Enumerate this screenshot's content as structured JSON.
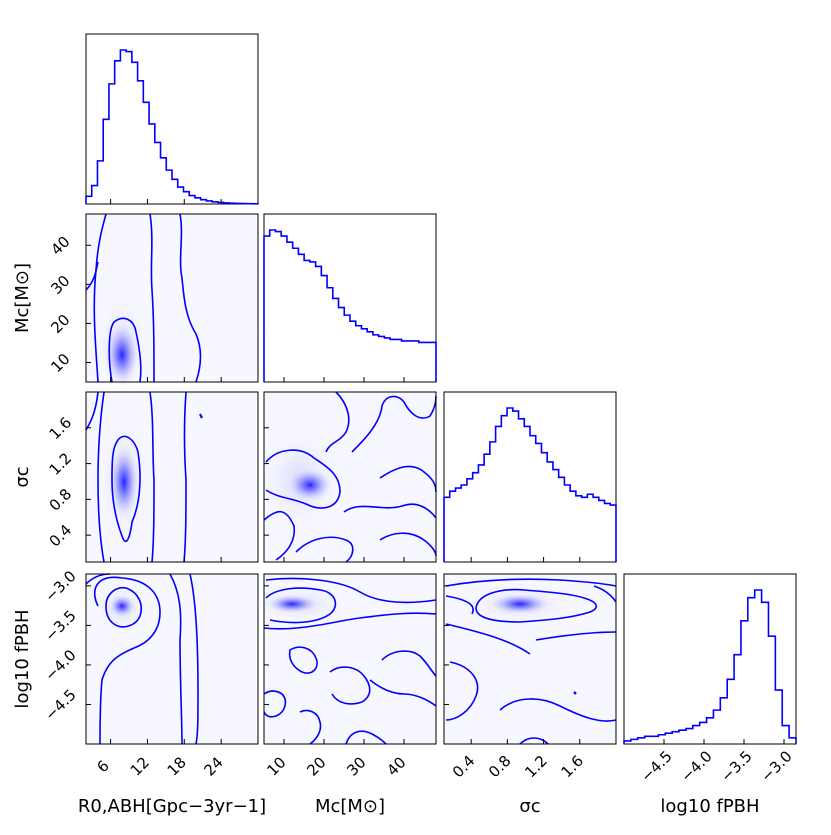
{
  "chart_data": {
    "type": "corner",
    "color": "#0000ff",
    "parameters": [
      {
        "label": "R_{0,ABH}[Gpc^{-3}yr^{-1}]",
        "range": [
          2,
          30
        ],
        "ticks": [
          6,
          12,
          18,
          24
        ]
      },
      {
        "label": "M_c[M_⊙]",
        "range": [
          5,
          48
        ],
        "ticks": [
          10,
          20,
          30,
          40
        ]
      },
      {
        "label": "σ_c",
        "range": [
          0.1,
          2.0
        ],
        "ticks": [
          0.4,
          0.8,
          1.2,
          1.6
        ]
      },
      {
        "label": "log10 f_PBH",
        "range": [
          -5.0,
          -2.85
        ],
        "ticks": [
          -4.5,
          -4.0,
          -3.5,
          -3.0
        ]
      }
    ],
    "axis_labels": {
      "x": [
        "R0,ABH[Gpc−3yr−1]",
        "Mc[M⊙]",
        "σc",
        "log10 fPBH"
      ],
      "y": [
        "Mc[M⊙]",
        "σc",
        "log10 fPBH"
      ]
    },
    "tick_labels": {
      "R": [
        "6",
        "12",
        "18",
        "24"
      ],
      "M": [
        "10",
        "20",
        "30",
        "40"
      ],
      "S": [
        "0.4",
        "0.8",
        "1.2",
        "1.6"
      ],
      "F": [
        "−4.5",
        "−4.0",
        "−3.5",
        "−3.0"
      ],
      "M_y": [
        "10",
        "20",
        "30",
        "40"
      ],
      "S_y": [
        "0.4",
        "0.8",
        "1.2",
        "1.6"
      ],
      "F_y": [
        "−4.5",
        "−4.0",
        "−3.5",
        "−3.0"
      ]
    },
    "histograms": {
      "R": {
        "x_range": [
          2,
          30
        ],
        "values": [
          0.05,
          0.12,
          0.28,
          0.55,
          0.78,
          0.93,
          1.0,
          0.99,
          0.92,
          0.8,
          0.66,
          0.52,
          0.4,
          0.3,
          0.22,
          0.16,
          0.11,
          0.08,
          0.055,
          0.04,
          0.028,
          0.02,
          0.014,
          0.01,
          0.007,
          0.005,
          0.004,
          0.003,
          0.002,
          0.001
        ]
      },
      "M": {
        "x_range": [
          5,
          48
        ],
        "values": [
          0.96,
          1.0,
          0.99,
          0.96,
          0.92,
          0.88,
          0.84,
          0.8,
          0.79,
          0.76,
          0.7,
          0.62,
          0.55,
          0.49,
          0.44,
          0.4,
          0.37,
          0.35,
          0.33,
          0.31,
          0.3,
          0.29,
          0.28,
          0.28,
          0.27,
          0.27,
          0.27,
          0.26,
          0.26,
          0.26
        ]
      },
      "S": {
        "x_range": [
          0.1,
          2.0
        ],
        "values": [
          0.42,
          0.46,
          0.48,
          0.5,
          0.54,
          0.58,
          0.63,
          0.7,
          0.78,
          0.88,
          0.95,
          1.0,
          0.98,
          0.93,
          0.88,
          0.82,
          0.77,
          0.71,
          0.65,
          0.6,
          0.55,
          0.5,
          0.46,
          0.43,
          0.42,
          0.44,
          0.42,
          0.4,
          0.38,
          0.37
        ]
      },
      "F": {
        "x_range": [
          -5.0,
          -2.85
        ],
        "values": [
          0.02,
          0.03,
          0.04,
          0.05,
          0.05,
          0.06,
          0.07,
          0.08,
          0.09,
          0.1,
          0.12,
          0.14,
          0.17,
          0.22,
          0.3,
          0.42,
          0.58,
          0.8,
          0.95,
          1.0,
          0.92,
          0.7,
          0.35,
          0.12,
          0.04
        ]
      }
    },
    "density_peaks": {
      "M_vs_R": {
        "x": 7.5,
        "y": 11
      },
      "S_vs_R": {
        "x": 7.5,
        "y": 0.95
      },
      "F_vs_R": {
        "x": 7.0,
        "y": -3.2
      },
      "S_vs_M": {
        "x": 17,
        "y": 0.88
      },
      "F_vs_M": {
        "x": 12,
        "y": -3.2
      },
      "F_vs_S": {
        "x": 0.95,
        "y": -3.2
      }
    }
  }
}
